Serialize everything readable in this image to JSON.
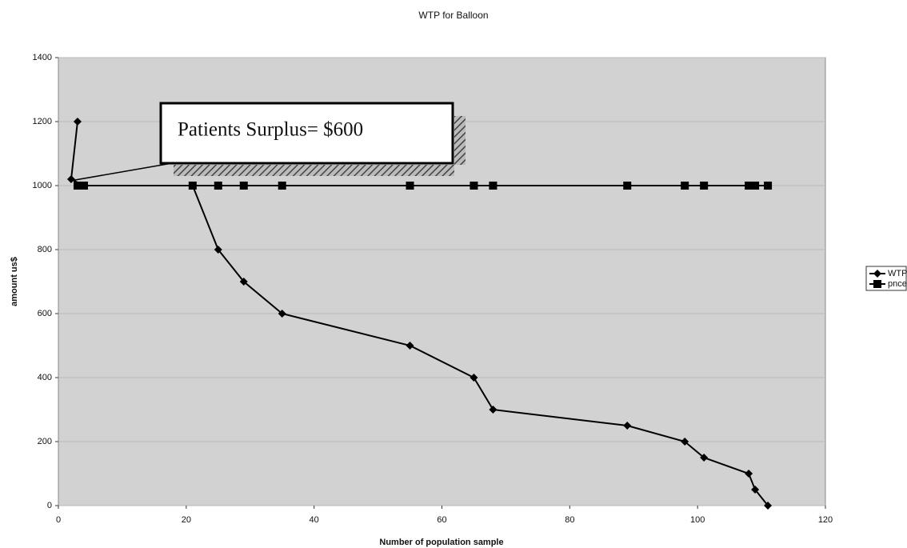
{
  "chart_data": {
    "type": "line",
    "title": "WTP for Balloon",
    "xlabel": "Number of population sample",
    "ylabel": "amount us$",
    "annotation": "Patients Surplus= $600",
    "xlim": [
      0,
      120
    ],
    "xticks": [
      0,
      20,
      40,
      60,
      80,
      100,
      120
    ],
    "ylim": [
      0,
      1400
    ],
    "yticks": [
      0,
      200,
      400,
      600,
      800,
      1000,
      1200,
      1400
    ],
    "grid": true,
    "legend": "right",
    "series": [
      {
        "name": "WTP",
        "color": "#000000",
        "marker": "diamond",
        "x": [
          3,
          2,
          4,
          21,
          25,
          29,
          35,
          55,
          65,
          68,
          89,
          98,
          101,
          108,
          109,
          111
        ],
        "values": [
          1200,
          1020,
          1000,
          1000,
          800,
          700,
          600,
          500,
          400,
          300,
          250,
          200,
          150,
          100,
          50,
          0
        ]
      },
      {
        "name": "pnce",
        "color": "#000000",
        "marker": "square",
        "x": [
          3,
          4,
          21,
          25,
          29,
          35,
          55,
          65,
          68,
          89,
          98,
          101,
          108,
          109,
          111
        ],
        "values": [
          1000,
          1000,
          1000,
          1000,
          1000,
          1000,
          1000,
          1000,
          1000,
          1000,
          1000,
          1000,
          1000,
          1000,
          1000
        ]
      }
    ]
  }
}
